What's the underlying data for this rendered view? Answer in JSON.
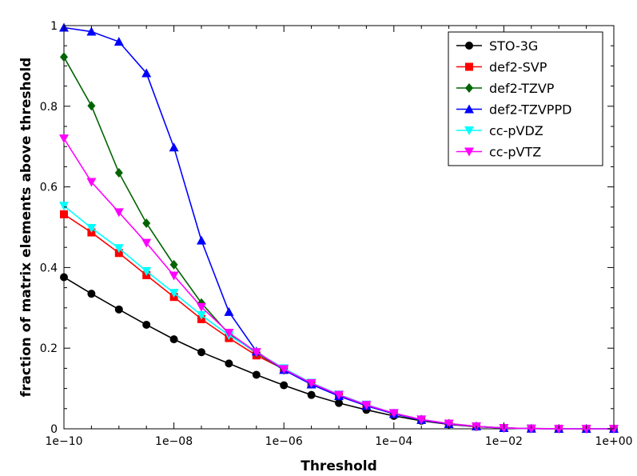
{
  "chart_data": {
    "type": "line",
    "title": "",
    "xlabel": "Threshold",
    "ylabel": "fraction of matrix elements above threshold",
    "xscale": "log10",
    "xlim_exp": [
      -10,
      0
    ],
    "ylim": [
      0,
      1
    ],
    "x_ticks": [
      {
        "exp": -10,
        "label": "1e−10"
      },
      {
        "exp": -8,
        "label": "1e−08"
      },
      {
        "exp": -6,
        "label": "1e−06"
      },
      {
        "exp": -4,
        "label": "1e−04"
      },
      {
        "exp": -2,
        "label": "1e−02"
      },
      {
        "exp": 0,
        "label": "1e+00"
      }
    ],
    "y_ticks": [
      {
        "value": 0,
        "label": "0"
      },
      {
        "value": 0.2,
        "label": "0.2"
      },
      {
        "value": 0.4,
        "label": "0.4"
      },
      {
        "value": 0.6,
        "label": "0.6"
      },
      {
        "value": 0.8,
        "label": "0.8"
      },
      {
        "value": 1,
        "label": "1"
      }
    ],
    "grid": false,
    "legend_position": "top-right",
    "x_exponents": [
      -10,
      -9.5,
      -9,
      -8.5,
      -8,
      -7.5,
      -7,
      -6.5,
      -6,
      -5.5,
      -5,
      -4.5,
      -4,
      -3.5,
      -3,
      -2.5,
      -2,
      -1.5,
      -1,
      -0.5,
      0
    ],
    "series": [
      {
        "name": "STO-3G",
        "color": "#000000",
        "marker": "circle",
        "values": [
          0.376,
          0.335,
          0.296,
          0.258,
          0.222,
          0.19,
          0.162,
          0.134,
          0.108,
          0.084,
          0.064,
          0.047,
          0.032,
          0.02,
          0.011,
          0.005,
          0.002,
          0.0005,
          0.0001,
          2e-05,
          0.0
        ]
      },
      {
        "name": "def2-SVP",
        "color": "#ff0000",
        "marker": "square",
        "values": [
          0.532,
          0.487,
          0.436,
          0.381,
          0.327,
          0.272,
          0.225,
          0.182,
          0.148,
          0.112,
          0.083,
          0.058,
          0.038,
          0.022,
          0.012,
          0.006,
          0.002,
          0.0006,
          0.0001,
          2e-05,
          0.0
        ]
      },
      {
        "name": "def2-TZVP",
        "color": "#006400",
        "marker": "diamond",
        "values": [
          0.922,
          0.801,
          0.635,
          0.51,
          0.407,
          0.312,
          0.235,
          0.188,
          0.146,
          0.111,
          0.082,
          0.058,
          0.038,
          0.023,
          0.013,
          0.006,
          0.002,
          0.0006,
          0.0001,
          2e-05,
          0.0
        ]
      },
      {
        "name": "def2-TZVPPD",
        "color": "#0000ff",
        "marker": "triangle-up",
        "values": [
          0.995,
          0.985,
          0.96,
          0.882,
          0.698,
          0.467,
          0.29,
          0.192,
          0.146,
          0.11,
          0.081,
          0.057,
          0.037,
          0.022,
          0.012,
          0.006,
          0.002,
          0.0006,
          0.0001,
          2e-05,
          0.0
        ]
      },
      {
        "name": "cc-pVDZ",
        "color": "#00ffff",
        "marker": "triangle-down",
        "values": [
          0.553,
          0.498,
          0.448,
          0.391,
          0.337,
          0.282,
          0.232,
          0.19,
          0.15,
          0.114,
          0.085,
          0.06,
          0.039,
          0.023,
          0.013,
          0.006,
          0.002,
          0.0006,
          0.0001,
          2e-05,
          0.0
        ]
      },
      {
        "name": "cc-pVTZ",
        "color": "#ff00ff",
        "marker": "triangle-down",
        "values": [
          0.72,
          0.612,
          0.537,
          0.461,
          0.38,
          0.302,
          0.238,
          0.19,
          0.148,
          0.113,
          0.084,
          0.059,
          0.039,
          0.023,
          0.013,
          0.006,
          0.002,
          0.0006,
          0.0001,
          2e-05,
          0.0
        ]
      }
    ]
  }
}
